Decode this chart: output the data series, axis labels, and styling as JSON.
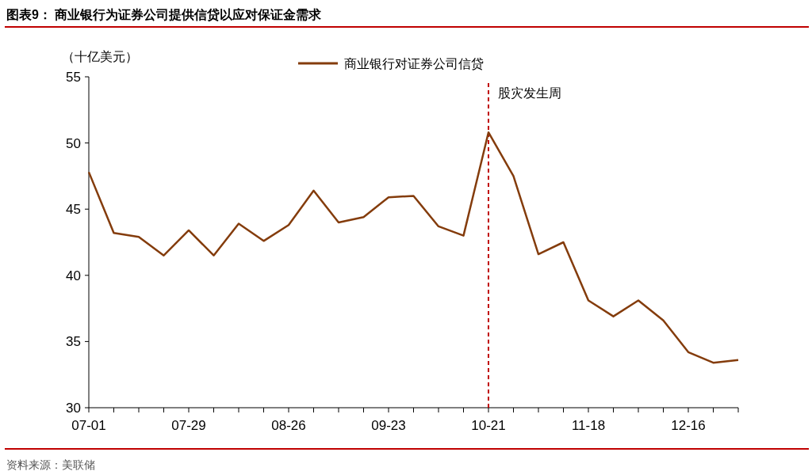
{
  "chart_data": {
    "type": "line",
    "title": "图表9：  商业银行为证券公司提供信贷以应对保证金需求",
    "ylabel": "（十亿美元）",
    "categories": [
      "07-01",
      null,
      null,
      null,
      "07-29",
      null,
      null,
      null,
      "08-26",
      null,
      null,
      null,
      "09-23",
      null,
      null,
      null,
      "10-21",
      null,
      null,
      null,
      "11-18",
      null,
      null,
      null,
      "12-16",
      null,
      null
    ],
    "series": [
      {
        "name": "商业银行对证券公司信贷",
        "color": "#843c0c",
        "values": [
          47.8,
          43.2,
          42.9,
          41.5,
          43.4,
          41.5,
          43.9,
          42.6,
          43.8,
          46.4,
          44.0,
          44.4,
          45.9,
          46.0,
          43.7,
          43.0,
          50.8,
          47.5,
          41.6,
          42.5,
          38.1,
          36.9,
          38.1,
          36.6,
          34.2,
          33.4,
          33.6
        ]
      }
    ],
    "ylim": [
      30,
      55
    ],
    "yticks": [
      30,
      35,
      40,
      45,
      50,
      55
    ],
    "ref_lines": [
      {
        "axis": "x",
        "value": "10-21",
        "label": "股灾发生周",
        "color": "#c00000",
        "line_style": "dashed"
      }
    ],
    "legend": "top",
    "annotations": [
      "资料来源：美联储"
    ]
  }
}
